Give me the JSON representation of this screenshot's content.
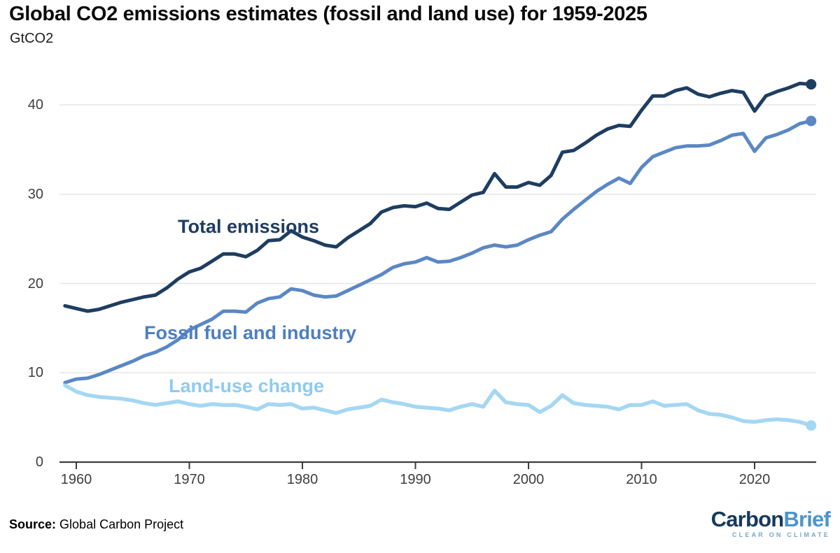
{
  "header": {
    "title": "Global CO2 emissions estimates (fossil and land use) for 1959-2025",
    "unit_label": "GtCO2"
  },
  "footer": {
    "source_label": "Source:",
    "source_text": "Global Carbon Project",
    "logo": {
      "part1": "Carbon",
      "part2": "Brief",
      "tagline": "CLEAR ON CLIMATE"
    }
  },
  "chart_data": {
    "type": "line",
    "title": "Global CO2 emissions estimates (fossil and land use) for 1959-2025",
    "unit": "GtCO2",
    "xlabel": "",
    "ylabel": "GtCO2",
    "xlim": [
      1958.5,
      2026
    ],
    "ylim": [
      0,
      43.2
    ],
    "grid": "horizontal",
    "legend": "inline-labels",
    "x_ticks": [
      1960,
      1970,
      1980,
      1990,
      2000,
      2010,
      2020
    ],
    "y_ticks": [
      0,
      10,
      20,
      30,
      40
    ],
    "axis_color": "#3c3c3c",
    "gridline_color": "#e6e6e6",
    "x": [
      1959,
      1960,
      1961,
      1962,
      1963,
      1964,
      1965,
      1966,
      1967,
      1968,
      1969,
      1970,
      1971,
      1972,
      1973,
      1974,
      1975,
      1976,
      1977,
      1978,
      1979,
      1980,
      1981,
      1982,
      1983,
      1984,
      1985,
      1986,
      1987,
      1988,
      1989,
      1990,
      1991,
      1992,
      1993,
      1994,
      1995,
      1996,
      1997,
      1998,
      1999,
      2000,
      2001,
      2002,
      2003,
      2004,
      2005,
      2006,
      2007,
      2008,
      2009,
      2010,
      2011,
      2012,
      2013,
      2014,
      2015,
      2016,
      2017,
      2018,
      2019,
      2020,
      2021,
      2022,
      2023,
      2024,
      2025
    ],
    "series": [
      {
        "id": "total-emissions",
        "name": "Total emissions",
        "color": "#1e3d61",
        "label_color": "#1e3d61",
        "line_width": 5,
        "end_dot": true,
        "values": [
          17.5,
          17.2,
          16.9,
          17.1,
          17.5,
          17.9,
          18.2,
          18.5,
          18.7,
          19.5,
          20.5,
          21.3,
          21.7,
          22.5,
          23.3,
          23.3,
          23.0,
          23.7,
          24.8,
          24.9,
          25.9,
          25.2,
          24.8,
          24.3,
          24.1,
          25.1,
          25.9,
          26.7,
          28.0,
          28.5,
          28.7,
          28.6,
          29.0,
          28.4,
          28.3,
          29.1,
          29.9,
          30.2,
          32.3,
          30.8,
          30.8,
          31.3,
          31.0,
          32.1,
          34.7,
          34.9,
          35.7,
          36.6,
          37.3,
          37.7,
          37.6,
          39.4,
          41.0,
          41.0,
          41.6,
          41.9,
          41.2,
          40.9,
          41.3,
          41.6,
          41.4,
          39.3,
          41.0,
          41.5,
          41.9,
          42.4,
          42.3
        ]
      },
      {
        "id": "fossil-fuel-and-industry",
        "name": "Fossil fuel and industry",
        "color": "#5b87c5",
        "label_color": "#4d7ec0",
        "line_width": 5,
        "end_dot": true,
        "values": [
          8.9,
          9.3,
          9.4,
          9.8,
          10.3,
          10.8,
          11.3,
          11.9,
          12.3,
          12.9,
          13.7,
          14.8,
          15.4,
          16.0,
          16.9,
          16.9,
          16.8,
          17.8,
          18.3,
          18.5,
          19.4,
          19.2,
          18.7,
          18.5,
          18.6,
          19.2,
          19.8,
          20.4,
          21.0,
          21.8,
          22.2,
          22.4,
          22.9,
          22.4,
          22.5,
          22.9,
          23.4,
          24.0,
          24.3,
          24.1,
          24.3,
          24.9,
          25.4,
          25.8,
          27.2,
          28.3,
          29.3,
          30.3,
          31.1,
          31.8,
          31.2,
          33.0,
          34.2,
          34.7,
          35.2,
          35.4,
          35.4,
          35.5,
          36.0,
          36.6,
          36.8,
          34.8,
          36.3,
          36.7,
          37.2,
          37.9,
          38.2
        ]
      },
      {
        "id": "land-use-change",
        "name": "Land-use change",
        "color": "#a5d7f3",
        "label_color": "#8ecbf0",
        "line_width": 5.5,
        "end_dot": true,
        "values": [
          8.6,
          7.9,
          7.5,
          7.3,
          7.2,
          7.1,
          6.9,
          6.6,
          6.4,
          6.6,
          6.8,
          6.5,
          6.3,
          6.5,
          6.4,
          6.4,
          6.2,
          5.9,
          6.5,
          6.4,
          6.5,
          6.0,
          6.1,
          5.8,
          5.5,
          5.9,
          6.1,
          6.3,
          7.0,
          6.7,
          6.5,
          6.2,
          6.1,
          6.0,
          5.8,
          6.2,
          6.5,
          6.2,
          8.0,
          6.7,
          6.5,
          6.4,
          5.6,
          6.3,
          7.5,
          6.6,
          6.4,
          6.3,
          6.2,
          5.9,
          6.4,
          6.4,
          6.8,
          6.3,
          6.4,
          6.5,
          5.8,
          5.4,
          5.3,
          5.0,
          4.6,
          4.5,
          4.7,
          4.8,
          4.7,
          4.5,
          4.1
        ]
      }
    ]
  }
}
